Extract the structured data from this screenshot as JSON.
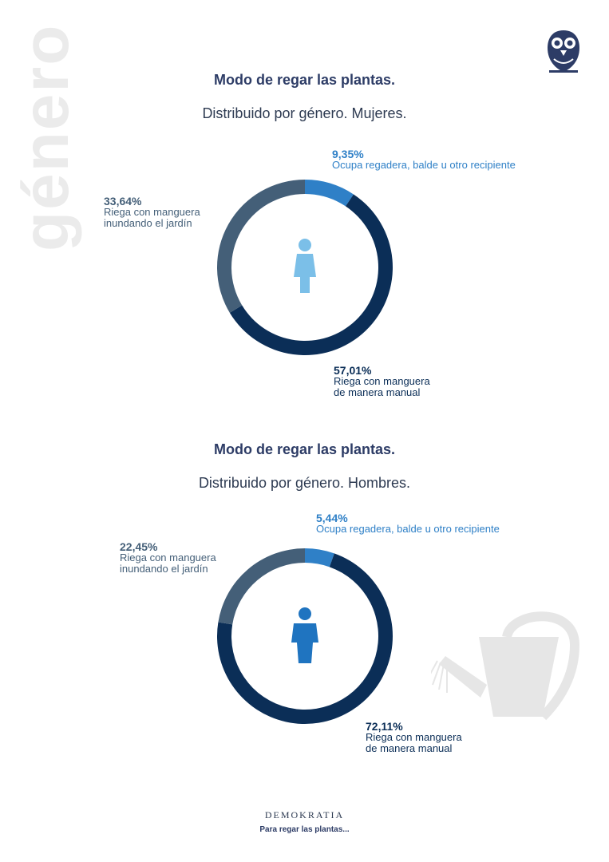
{
  "side_word": "género",
  "brand": "DEMOKRATIA",
  "footer": "Para regar las plantas...",
  "colors": {
    "regadera": "#2f80c7",
    "manual": "#0b2e57",
    "inundando": "#445f78",
    "female_icon": "#7bbfe8",
    "male_icon": "#1f74c0",
    "title": "#2d3c66"
  },
  "chart_data": [
    {
      "type": "pie",
      "title": "Modo de regar las plantas.",
      "subtitle": "Distribuido por género. Mujeres.",
      "icon": "female-figure-icon",
      "labels": [
        {
          "value": "9,35%",
          "text": "Ocupa regadera, balde u otro recipiente"
        },
        {
          "value": "57,01%",
          "text": "Riega con manguera de manera manual"
        },
        {
          "value": "33,64%",
          "text": "Riega con manguera inundando el jardín"
        }
      ],
      "values": [
        9.35,
        57.01,
        33.64
      ],
      "colors": [
        "#2f80c7",
        "#0b2e57",
        "#445f78"
      ]
    },
    {
      "type": "pie",
      "title": "Modo de regar las plantas.",
      "subtitle": "Distribuido por género. Hombres.",
      "icon": "male-figure-icon",
      "labels": [
        {
          "value": "5,44%",
          "text": "Ocupa regadera, balde u otro recipiente"
        },
        {
          "value": "72,11%",
          "text": "Riega con manguera de manera manual"
        },
        {
          "value": "22,45%",
          "text": "Riega con manguera inundando el jardín"
        }
      ],
      "values": [
        5.44,
        72.11,
        22.45
      ],
      "colors": [
        "#2f80c7",
        "#0b2e57",
        "#445f78"
      ]
    }
  ]
}
